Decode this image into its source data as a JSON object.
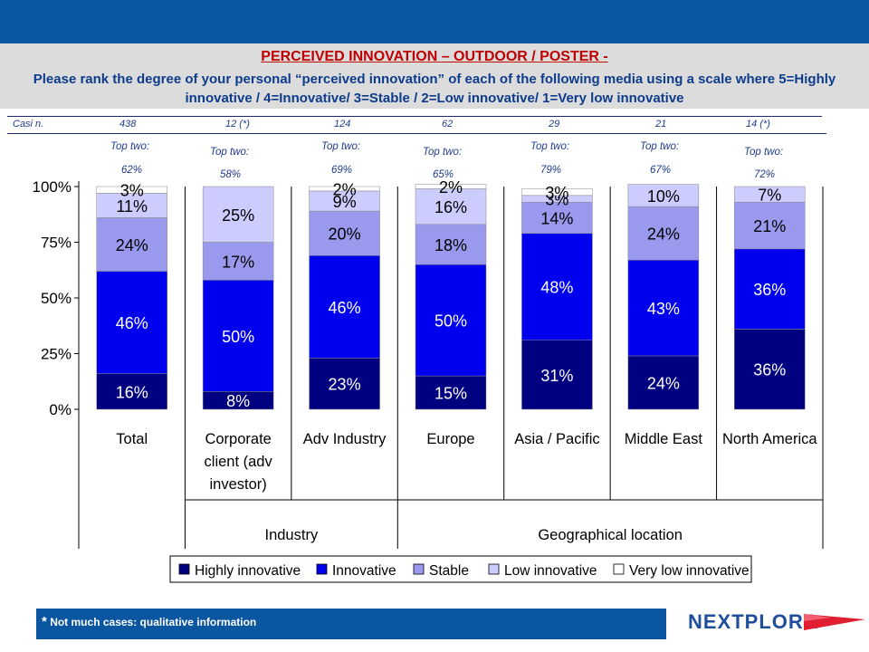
{
  "header": {
    "title": "PERCEIVED INNOVATION – OUTDOOR / POSTER -",
    "subtitle": "Please rank the degree of your personal “perceived innovation” of each of the following media using a scale where  5=Highly innovative / 4=Innovative/ 3=Stable / 2=Low innovative/ 1=Very low innovative"
  },
  "casi": {
    "label": "Casi n.",
    "values": [
      "438",
      "12 (*)",
      "124",
      "62",
      "29",
      "21",
      "14 (*)"
    ]
  },
  "top_two": {
    "label": "Top two:",
    "values": [
      "62%",
      "58%",
      "69%",
      "65%",
      "79%",
      "67%",
      "72%"
    ]
  },
  "chart_data": {
    "type": "bar",
    "stacked": true,
    "categories": [
      "Total",
      "Corporate client (adv investor)",
      "Adv Industry",
      "Europe",
      "Asia / Pacific",
      "Middle East",
      "North America"
    ],
    "category_lines": [
      [
        "Total"
      ],
      [
        "Corporate",
        "client (adv",
        "investor)"
      ],
      [
        "Adv Industry"
      ],
      [
        "Europe"
      ],
      [
        "Asia / Pacific"
      ],
      [
        "Middle East"
      ],
      [
        "North America"
      ]
    ],
    "groups": [
      {
        "label": "Industry",
        "categories": [
          "Corporate client (adv investor)",
          "Adv Industry"
        ]
      },
      {
        "label": "Geographical location",
        "categories": [
          "Europe",
          "Asia / Pacific",
          "Middle East",
          "North America"
        ]
      }
    ],
    "series": [
      {
        "name": "Highly innovative",
        "color": "#000080",
        "values": [
          16,
          8,
          23,
          15,
          31,
          24,
          36
        ]
      },
      {
        "name": "Innovative",
        "color": "#0000ee",
        "values": [
          46,
          50,
          46,
          50,
          48,
          43,
          36
        ]
      },
      {
        "name": "Stable",
        "color": "#9999ee",
        "values": [
          24,
          17,
          20,
          18,
          14,
          24,
          21
        ]
      },
      {
        "name": "Low innovative",
        "color": "#ccccff",
        "values": [
          11,
          25,
          9,
          16,
          3,
          10,
          7
        ]
      },
      {
        "name": "Very low innovative",
        "color": "#ffffff",
        "values": [
          3,
          0,
          2,
          2,
          3,
          0,
          0
        ]
      }
    ],
    "yticks": [
      "0%",
      "25%",
      "50%",
      "75%",
      "100%"
    ],
    "ylim": [
      0,
      100
    ],
    "legend_position": "bottom"
  },
  "footer": {
    "note": "Not much cases: qualitative information",
    "asterisk": "*",
    "logo": "NEXTPLORA"
  }
}
